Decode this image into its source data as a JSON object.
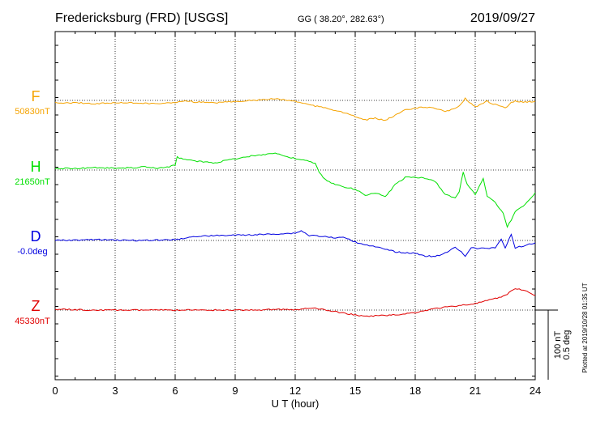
{
  "header": {
    "station": "Fredericksburg (FRD)  [USGS]",
    "coords": "GG ( 38.20°, 282.63°)",
    "date": "2019/09/27"
  },
  "chart_data": {
    "type": "line",
    "xlabel": "U T (hour)",
    "xlim": [
      0,
      24
    ],
    "x_ticks": [
      "0",
      "3",
      "6",
      "9",
      "12",
      "15",
      "18",
      "21",
      "24"
    ],
    "scale_bar": {
      "line1": "100 nT",
      "line2": "0.5 deg"
    },
    "plotted_note": "Plotted at 2019/10/28 01:35 UT",
    "series": [
      {
        "name": "F",
        "baseline_label": "50830nT",
        "color": "#f5a300",
        "values": [
          [
            0,
            3
          ],
          [
            1,
            3
          ],
          [
            2,
            4
          ],
          [
            3,
            3
          ],
          [
            4,
            3
          ],
          [
            5,
            4
          ],
          [
            6,
            3
          ],
          [
            6.5,
            0
          ],
          [
            7,
            2
          ],
          [
            8,
            3
          ],
          [
            9,
            1
          ],
          [
            10,
            0
          ],
          [
            11,
            -2
          ],
          [
            12,
            1
          ],
          [
            12.5,
            4
          ],
          [
            13,
            7
          ],
          [
            13.5,
            9
          ],
          [
            14,
            12
          ],
          [
            14.5,
            16
          ],
          [
            15,
            20
          ],
          [
            15.5,
            24
          ],
          [
            16,
            22
          ],
          [
            16.5,
            25
          ],
          [
            17,
            18
          ],
          [
            17.5,
            12
          ],
          [
            18,
            10
          ],
          [
            18.5,
            8
          ],
          [
            19,
            10
          ],
          [
            19.5,
            14
          ],
          [
            20,
            10
          ],
          [
            20.3,
            4
          ],
          [
            20.5,
            -3
          ],
          [
            20.7,
            2
          ],
          [
            21,
            8
          ],
          [
            21.3,
            5
          ],
          [
            21.6,
            1
          ],
          [
            21.9,
            5
          ],
          [
            22.2,
            6
          ],
          [
            22.5,
            9
          ],
          [
            22.8,
            3
          ],
          [
            23,
            1
          ],
          [
            23.5,
            2
          ],
          [
            24,
            1
          ]
        ]
      },
      {
        "name": "H",
        "baseline_label": "21650nT",
        "color": "#00e000",
        "values": [
          [
            0,
            -2
          ],
          [
            1,
            -2
          ],
          [
            2,
            -3
          ],
          [
            3,
            -2
          ],
          [
            4,
            -3
          ],
          [
            4.5,
            -4
          ],
          [
            5,
            -2
          ],
          [
            5.5,
            -3
          ],
          [
            6,
            -6
          ],
          [
            6.1,
            -16
          ],
          [
            6.5,
            -13
          ],
          [
            7,
            -11
          ],
          [
            8,
            -9
          ],
          [
            9,
            -14
          ],
          [
            10,
            -18
          ],
          [
            11,
            -21
          ],
          [
            11.5,
            -17
          ],
          [
            12,
            -14
          ],
          [
            12.5,
            -12
          ],
          [
            13,
            -8
          ],
          [
            13.2,
            3
          ],
          [
            13.5,
            12
          ],
          [
            14,
            18
          ],
          [
            14.5,
            21
          ],
          [
            15,
            24
          ],
          [
            15.5,
            31
          ],
          [
            16,
            28
          ],
          [
            16.5,
            33
          ],
          [
            17,
            18
          ],
          [
            17.5,
            9
          ],
          [
            18,
            9
          ],
          [
            18.5,
            10
          ],
          [
            19,
            14
          ],
          [
            19.5,
            30
          ],
          [
            20,
            35
          ],
          [
            20.2,
            26
          ],
          [
            20.4,
            3
          ],
          [
            20.6,
            18
          ],
          [
            21,
            30
          ],
          [
            21.2,
            20
          ],
          [
            21.4,
            10
          ],
          [
            21.6,
            32
          ],
          [
            22,
            40
          ],
          [
            22.4,
            54
          ],
          [
            22.6,
            70
          ],
          [
            22.8,
            62
          ],
          [
            23,
            52
          ],
          [
            23.5,
            42
          ],
          [
            24,
            28
          ]
        ]
      },
      {
        "name": "D",
        "baseline_label": "-0.0deg",
        "color": "#0000e0",
        "values": [
          [
            0,
            0
          ],
          [
            2,
            -1
          ],
          [
            4,
            0
          ],
          [
            6,
            -1
          ],
          [
            7,
            -5
          ],
          [
            8,
            -6
          ],
          [
            10,
            -7
          ],
          [
            11,
            -8
          ],
          [
            12,
            -9
          ],
          [
            12.3,
            -12
          ],
          [
            12.7,
            -6
          ],
          [
            13,
            -6
          ],
          [
            14,
            -3
          ],
          [
            14.5,
            -4
          ],
          [
            15,
            2
          ],
          [
            15.5,
            5
          ],
          [
            16,
            8
          ],
          [
            17,
            14
          ],
          [
            18,
            16
          ],
          [
            18.5,
            19
          ],
          [
            19,
            20
          ],
          [
            19.5,
            15
          ],
          [
            20,
            9
          ],
          [
            20.3,
            14
          ],
          [
            20.5,
            19
          ],
          [
            20.8,
            9
          ],
          [
            21,
            10
          ],
          [
            21.3,
            10
          ],
          [
            22,
            9
          ],
          [
            22.3,
            -2
          ],
          [
            22.5,
            9
          ],
          [
            22.8,
            -7
          ],
          [
            23,
            9
          ],
          [
            23.5,
            6
          ],
          [
            24,
            3
          ]
        ]
      },
      {
        "name": "Z",
        "baseline_label": "45330nT",
        "color": "#e00000",
        "values": [
          [
            0,
            -1
          ],
          [
            2,
            0
          ],
          [
            4,
            0
          ],
          [
            6,
            0
          ],
          [
            8,
            0
          ],
          [
            10,
            0
          ],
          [
            11,
            -1
          ],
          [
            12,
            0
          ],
          [
            12.5,
            -2
          ],
          [
            13,
            -2
          ],
          [
            14,
            2
          ],
          [
            15,
            6
          ],
          [
            15.5,
            8
          ],
          [
            16,
            7
          ],
          [
            17,
            6
          ],
          [
            18,
            3
          ],
          [
            19,
            -2
          ],
          [
            20,
            -5
          ],
          [
            21,
            -8
          ],
          [
            21.5,
            -11
          ],
          [
            22,
            -14
          ],
          [
            22.5,
            -18
          ],
          [
            23,
            -27
          ],
          [
            23.5,
            -24
          ],
          [
            24,
            -18
          ]
        ]
      }
    ]
  }
}
